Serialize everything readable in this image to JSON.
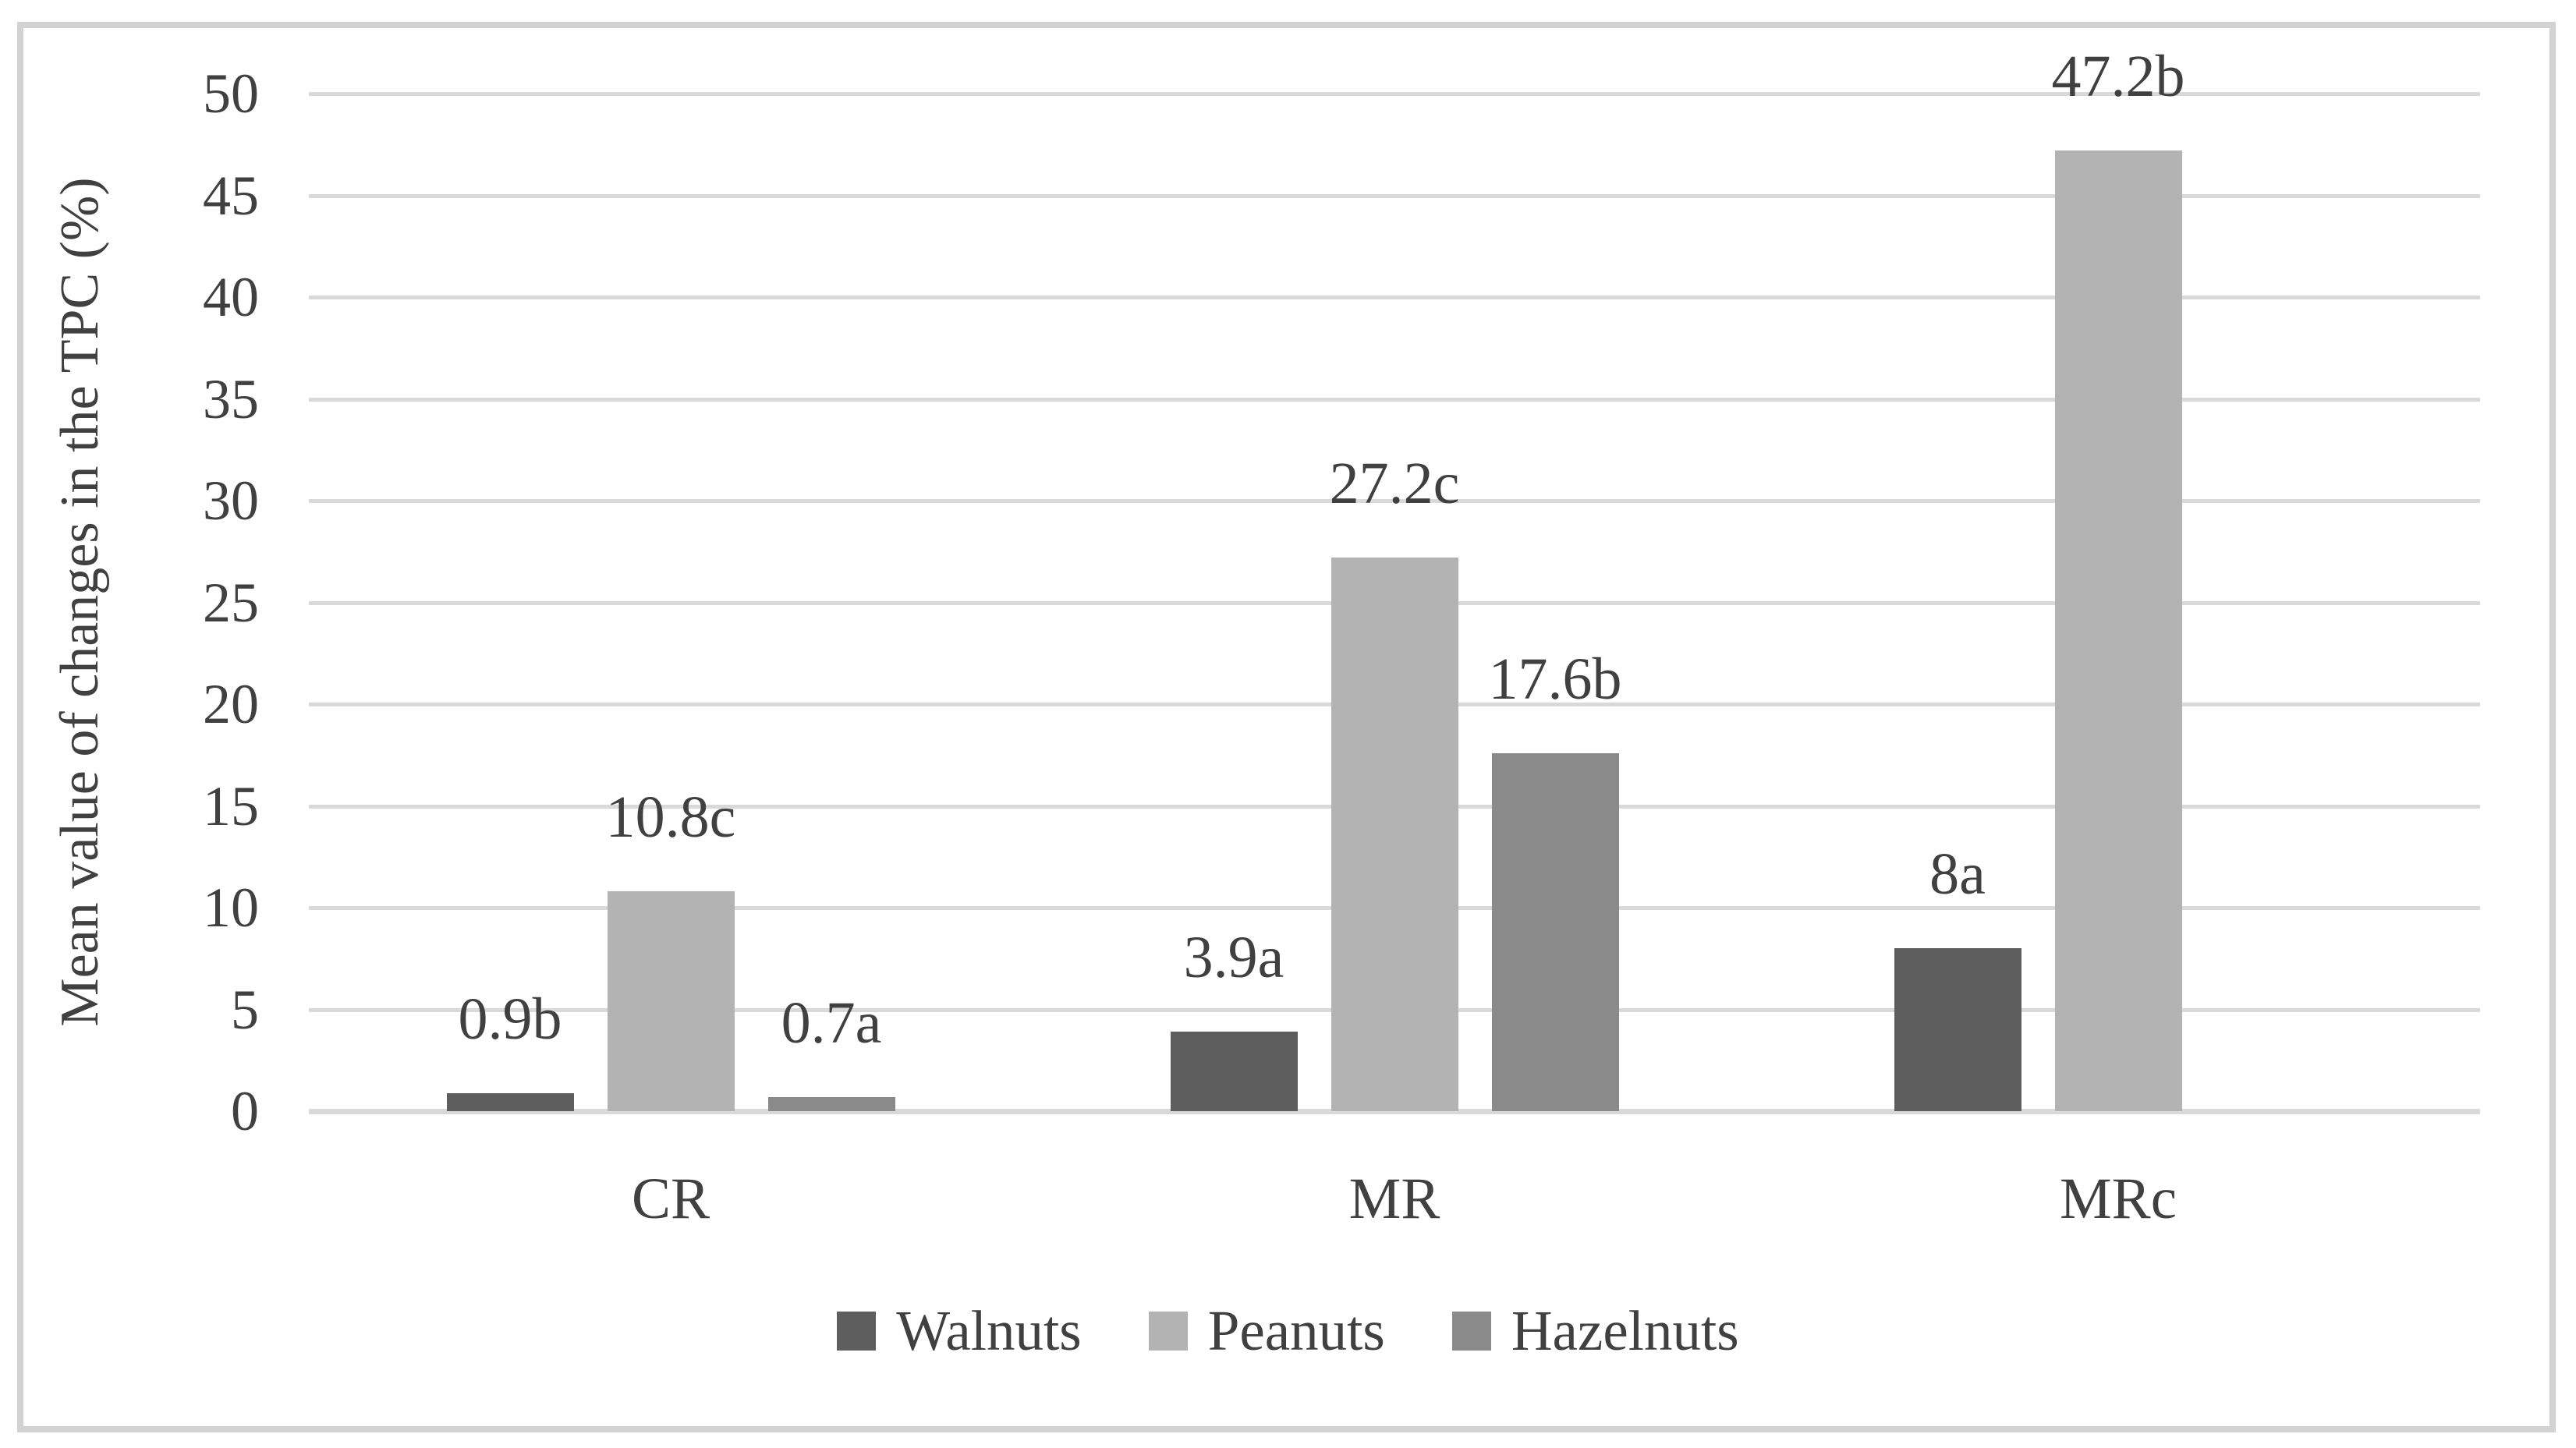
{
  "figure": {
    "background": "#ffffff",
    "frame_border_color": "#d2d2d2",
    "gridline_color": "#d9d9d9",
    "text_color": "#404040"
  },
  "chart_data": {
    "type": "bar",
    "title": "",
    "xlabel": "",
    "ylabel": "Mean value of changes in the TPC (%)",
    "ylim": [
      0,
      50
    ],
    "yticks": [
      0,
      5,
      10,
      15,
      20,
      25,
      30,
      35,
      40,
      45,
      50
    ],
    "grid": true,
    "legend_position": "bottom",
    "categories": [
      "CR",
      "MR",
      "MRc"
    ],
    "series": [
      {
        "name": "Walnuts",
        "color": "#5e5e5e",
        "values": [
          0.9,
          3.9,
          8
        ],
        "labels": [
          "0.9b",
          "3.9a",
          "8a"
        ]
      },
      {
        "name": "Peanuts",
        "color": "#b3b3b3",
        "values": [
          10.8,
          27.2,
          47.2
        ],
        "labels": [
          "10.8c",
          "27.2c",
          "47.2b"
        ]
      },
      {
        "name": "Hazelnuts",
        "color": "#8a8a8a",
        "values": [
          0.7,
          17.6,
          null
        ],
        "labels": [
          "0.7a",
          "17.6b",
          null
        ]
      }
    ]
  }
}
